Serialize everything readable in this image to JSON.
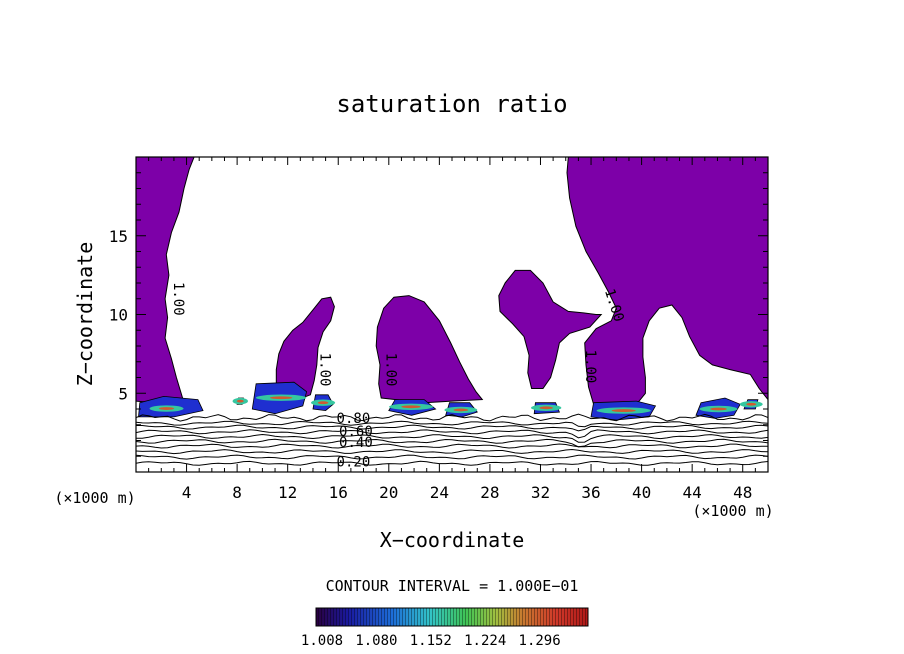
{
  "chart_data": {
    "type": "contour",
    "title": "saturation ratio",
    "xlabel": "X−coordinate",
    "ylabel": "Z−coordinate",
    "x_unit_label": "(×1000 m)",
    "z_unit_label": "(×1000 m)",
    "xlim": [
      0,
      50
    ],
    "ylim": [
      0,
      20
    ],
    "x_ticks": [
      4,
      8,
      12,
      16,
      20,
      24,
      28,
      32,
      36,
      40,
      44,
      48
    ],
    "y_ticks": [
      5,
      10,
      15
    ],
    "x_tick_labels": [
      "4",
      "8",
      "12",
      "16",
      "20",
      "24",
      "28",
      "32",
      "36",
      "40",
      "44",
      "48"
    ],
    "y_tick_labels": [
      "5",
      "10",
      "15"
    ],
    "contour_interval_text": "CONTOUR INTERVAL = 1.000E−01",
    "contour_labels": [
      {
        "text": "1.00",
        "x": 3.0,
        "z": 11.0,
        "angle": 90
      },
      {
        "text": "1.00",
        "x": 14.6,
        "z": 6.5,
        "angle": 90
      },
      {
        "text": "1.00",
        "x": 19.8,
        "z": 6.5,
        "angle": 90
      },
      {
        "text": "1.00",
        "x": 35.6,
        "z": 6.7,
        "angle": 90
      },
      {
        "text": "1.00",
        "x": 37.5,
        "z": 10.5,
        "angle": 72
      },
      {
        "text": "0.80",
        "x": 17.2,
        "z": 3.1,
        "angle": 0
      },
      {
        "text": "0.60",
        "x": 17.4,
        "z": 2.3,
        "angle": 0
      },
      {
        "text": "0.40",
        "x": 17.4,
        "z": 1.6,
        "angle": 0
      },
      {
        "text": "0.20",
        "x": 17.2,
        "z": 0.35,
        "angle": 0
      }
    ],
    "contour_levels_sub": [
      0.1,
      0.2,
      0.3,
      0.4,
      0.5,
      0.6,
      0.7,
      0.8,
      0.9
    ],
    "colorbar": {
      "min": 1.0,
      "max": 1.36,
      "tick_labels": [
        "1.008",
        "1.080",
        "1.152",
        "1.224",
        "1.296"
      ]
    },
    "colors": {
      "supersaturated": "#7d00a8",
      "contour_line": "#000000",
      "background": "#ffffff"
    }
  }
}
